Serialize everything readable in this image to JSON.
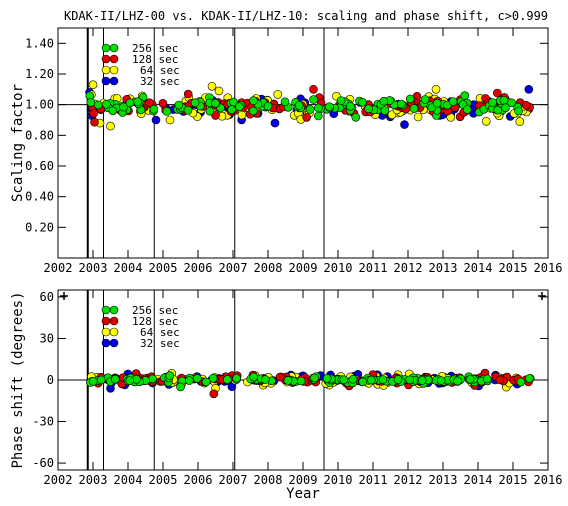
{
  "figure_title": "KDAK-II/LHZ-00 vs. KDAK-II/LHZ-10: scaling and phase shift, c>0.999",
  "colors": {
    "256 sec": "#00e000",
    "128 sec": "#e00000",
    "64 sec": "#ffff00",
    "32 sec": "#0000e0",
    "outline": "#000000"
  },
  "chart_data": [
    {
      "type": "scatter",
      "title": "KDAK-II/LHZ-00 vs. KDAK-II/LHZ-10: scaling and phase shift, c>0.999",
      "xlabel": "",
      "ylabel": "Scaling factor",
      "xlim": [
        2002,
        2016
      ],
      "ylim": [
        0.0,
        1.5
      ],
      "x_ticks": [
        "2002",
        "2003",
        "2004",
        "2005",
        "2006",
        "2007",
        "2008",
        "2009",
        "2010",
        "2011",
        "2012",
        "2013",
        "2014",
        "2015",
        "2016"
      ],
      "y_ticks": [
        "0.20",
        "0.40",
        "0.60",
        "0.80",
        "1.00",
        "1.20",
        "1.40"
      ],
      "y_tick_values": [
        0.2,
        0.4,
        0.6,
        0.8,
        1.0,
        1.2,
        1.4
      ],
      "reference_line": 1.0,
      "event_lines": [
        2002.85,
        2003.3,
        2004.75,
        2007.05,
        2009.6
      ],
      "legend": {
        "position": "top-left",
        "entries": [
          "256 sec",
          "128 sec",
          "64 sec",
          "32 sec"
        ]
      },
      "data_range": [
        2002.9,
        2015.5
      ],
      "series": [
        {
          "name": "256 sec",
          "center": 0.99,
          "spread": 0.025,
          "outliers": []
        },
        {
          "name": "128 sec",
          "center": 0.99,
          "spread": 0.03,
          "outliers": [
            [
              2009.3,
              1.1
            ],
            [
              2006.5,
              0.93
            ]
          ]
        },
        {
          "name": "64 sec",
          "center": 0.98,
          "spread": 0.04,
          "outliers": [
            [
              2003.0,
              1.13
            ],
            [
              2006.4,
              1.12
            ],
            [
              2006.6,
              1.09
            ],
            [
              2003.2,
              0.88
            ],
            [
              2003.5,
              0.86
            ],
            [
              2012.8,
              1.1
            ],
            [
              2005.2,
              0.9
            ]
          ]
        },
        {
          "name": "32 sec",
          "center": 0.985,
          "spread": 0.035,
          "outliers": [
            [
              2015.45,
              1.1
            ],
            [
              2011.9,
              0.87
            ],
            [
              2002.9,
              1.08
            ],
            [
              2004.8,
              0.9
            ],
            [
              2008.2,
              0.88
            ]
          ]
        }
      ]
    },
    {
      "type": "scatter",
      "title": "",
      "xlabel": "Year",
      "ylabel": "Phase shift (degrees)",
      "xlim": [
        2002,
        2016
      ],
      "ylim": [
        -65,
        65
      ],
      "x_ticks": [
        "2002",
        "2003",
        "2004",
        "2005",
        "2006",
        "2007",
        "2008",
        "2009",
        "2010",
        "2011",
        "2012",
        "2013",
        "2014",
        "2015",
        "2016"
      ],
      "y_ticks": [
        "-60",
        "-30",
        "0",
        "30",
        "60"
      ],
      "y_tick_values": [
        -60,
        -30,
        0,
        30,
        60
      ],
      "reference_line": 0,
      "event_lines": [
        2002.85,
        2003.3,
        2004.75,
        2007.05,
        2009.6
      ],
      "legend": {
        "position": "top-left",
        "entries": [
          "256 sec",
          "128 sec",
          "64 sec",
          "32 sec"
        ]
      },
      "data_range": [
        2002.9,
        2015.5
      ],
      "series": [
        {
          "name": "256 sec",
          "center": 0.0,
          "spread": 1.0,
          "outliers": [
            [
              2005.5,
              -5.0
            ]
          ]
        },
        {
          "name": "128 sec",
          "center": 0.0,
          "spread": 1.5,
          "outliers": [
            [
              2006.45,
              -10.0
            ],
            [
              2011.0,
              4.0
            ],
            [
              2014.2,
              5.0
            ]
          ]
        },
        {
          "name": "64 sec",
          "center": 0.0,
          "spread": 2.0,
          "outliers": [
            [
              2006.5,
              -6.0
            ],
            [
              2011.3,
              -4.0
            ]
          ]
        },
        {
          "name": "32 sec",
          "center": 0.0,
          "spread": 2.0,
          "outliers": [
            [
              2003.5,
              -6.0
            ],
            [
              2014.5,
              3.5
            ],
            [
              2009.0,
              3.0
            ]
          ]
        }
      ]
    }
  ]
}
